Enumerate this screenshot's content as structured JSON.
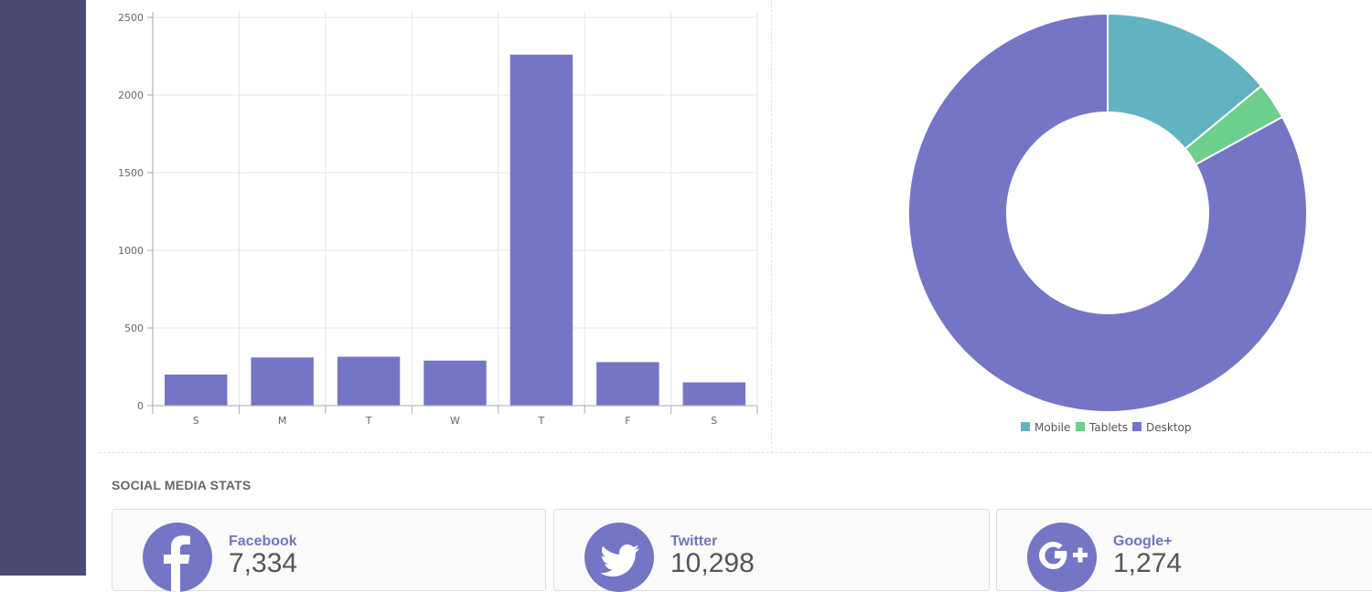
{
  "colors": {
    "sidebar": "#4b4a73",
    "bar": "#7575c6",
    "mobile": "#62b3c1",
    "tablets": "#6ccf8e",
    "desktop": "#7575c6",
    "grid": "#e5e5e5"
  },
  "chart_data": [
    {
      "type": "bar",
      "categories": [
        "S",
        "M",
        "T",
        "W",
        "T",
        "F",
        "S"
      ],
      "values": [
        200,
        310,
        315,
        290,
        2260,
        280,
        150
      ],
      "y_ticks": [
        "0",
        "500",
        "1000",
        "1500",
        "2000",
        "2500"
      ],
      "ylim": [
        0,
        2500
      ],
      "grid": true
    },
    {
      "type": "pie",
      "variant": "donut",
      "labels": [
        "Mobile",
        "Tablets",
        "Desktop"
      ],
      "values": [
        14,
        3,
        83
      ],
      "legend_position": "bottom"
    }
  ],
  "social": {
    "title": "SOCIAL MEDIA STATS",
    "cards": [
      {
        "name": "Facebook",
        "count": "7,334",
        "icon": "facebook-icon"
      },
      {
        "name": "Twitter",
        "count": "10,298",
        "icon": "twitter-icon"
      },
      {
        "name": "Google+",
        "count": "1,274",
        "icon": "google-plus-icon"
      }
    ]
  }
}
